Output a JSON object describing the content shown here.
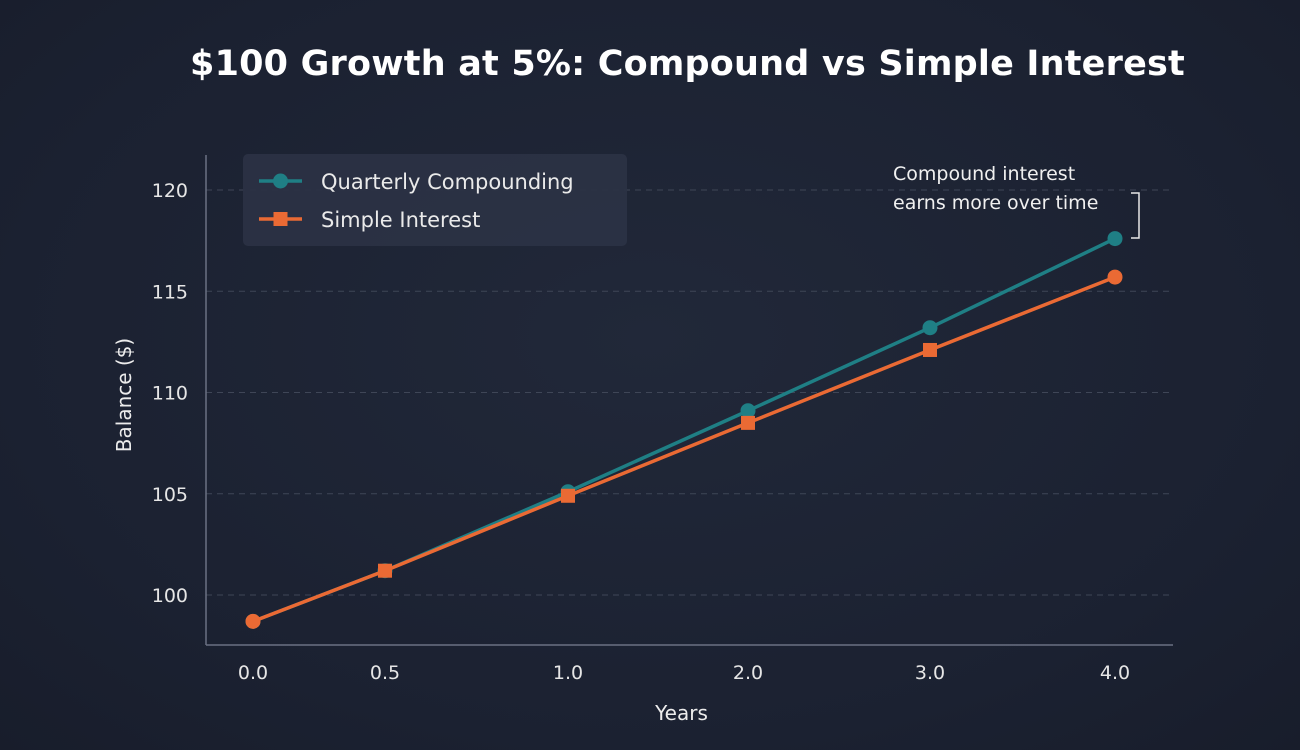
{
  "title": "$100 Growth at 5%: Compound vs Simple Interest",
  "colors": {
    "background": "#1c2233",
    "grid": "#3f4657",
    "axis": "#6b7183",
    "legend_bg": "#2b3245",
    "compound": "#1f7f85",
    "simple": "#ea6a34"
  },
  "annotation": {
    "line1": "Compound interest",
    "line2": "earns more over time"
  },
  "chart_data": {
    "type": "line",
    "title": "$100 Growth at 5%: Compound vs Simple Interest",
    "xlabel": "Years",
    "ylabel": "Balance ($)",
    "x": [
      0.0,
      0.5,
      1.0,
      2.0,
      3.0,
      4.0
    ],
    "x_tick_labels": [
      "0.0",
      "0.5",
      "1.0",
      "2.0",
      "3.0",
      "4.0"
    ],
    "y_ticks": [
      100,
      105,
      110,
      115,
      120
    ],
    "ylim": [
      97.5,
      122.0
    ],
    "grid": "horizontal dashed",
    "legend_position": "top-left",
    "series": [
      {
        "name": "Quarterly Compounding",
        "marker": "circle",
        "color": "#1f7f85",
        "values": [
          98.7,
          101.2,
          105.1,
          109.1,
          113.2,
          117.6
        ]
      },
      {
        "name": "Simple Interest",
        "marker": "square",
        "color": "#ea6a34",
        "values": [
          98.7,
          101.2,
          104.9,
          108.5,
          112.1,
          115.7
        ]
      }
    ]
  }
}
